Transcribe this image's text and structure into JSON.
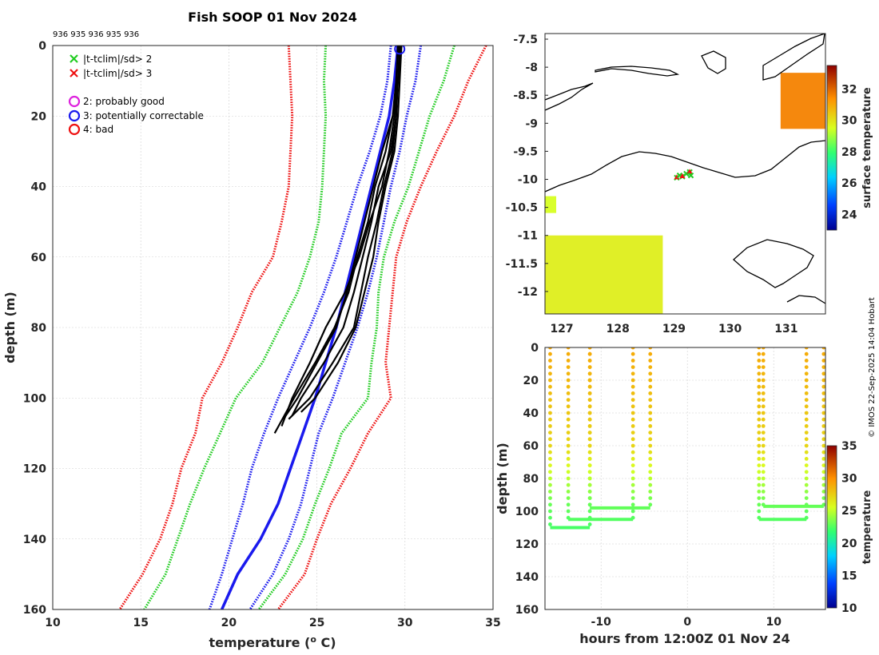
{
  "chart_data": [
    {
      "id": "profile",
      "type": "line",
      "title": "Fish SOOP 01 Nov 2024",
      "subtitle": "936 935 936 935 936",
      "xlabel": "temperature (",
      "xlabel_sup": "o",
      "xlabel_unit": " C)",
      "ylabel": "depth (m)",
      "xlim": [
        10,
        35
      ],
      "ylim": [
        0,
        160
      ],
      "y_reversed": true,
      "grid": true,
      "xticks": [
        10,
        15,
        20,
        25,
        30,
        35
      ],
      "yticks": [
        0,
        20,
        40,
        60,
        80,
        100,
        120,
        140,
        160
      ],
      "legend": [
        {
          "marker": "x",
          "color": "#22cc22",
          "label": "|t-tclim|/sd> 2"
        },
        {
          "marker": "x",
          "color": "#ee1111",
          "label": "|t-tclim|/sd> 3"
        },
        {
          "marker": "o",
          "color": "#dd22dd",
          "label": "2: probably good"
        },
        {
          "marker": "o",
          "color": "#1a1aee",
          "label": "3: potentially correctable"
        },
        {
          "marker": "o",
          "color": "#ee1111",
          "label": "4: bad"
        }
      ],
      "depths": [
        0,
        10,
        20,
        30,
        40,
        50,
        60,
        70,
        80,
        90,
        100,
        110,
        120,
        130,
        140,
        150,
        160
      ],
      "climatology_mean": [
        29.6,
        29.4,
        29.1,
        28.6,
        28.1,
        27.6,
        27.1,
        26.6,
        26.1,
        25.5,
        24.9,
        24.2,
        23.5,
        22.8,
        21.8,
        20.5,
        19.6
      ],
      "envelopes": [
        {
          "name": "-1 sd",
          "color": "#1a1aee",
          "values": [
            29.2,
            29.0,
            28.6,
            28.0,
            27.3,
            26.7,
            26.1,
            25.4,
            24.6,
            23.7,
            22.8,
            22.0,
            21.3,
            20.8,
            20.2,
            19.6,
            18.9
          ]
        },
        {
          "name": "+1 sd",
          "color": "#1a1aee",
          "values": [
            30.9,
            30.6,
            30.1,
            29.7,
            29.2,
            28.8,
            28.4,
            27.9,
            27.3,
            26.6,
            25.9,
            25.1,
            24.6,
            24.1,
            23.4,
            22.5,
            21.2
          ]
        },
        {
          "name": "-2 sd",
          "color": "#22cc22",
          "values": [
            25.5,
            25.4,
            25.5,
            25.4,
            25.3,
            25.1,
            24.6,
            23.9,
            22.9,
            21.9,
            20.4,
            19.5,
            18.6,
            17.8,
            17.1,
            16.4,
            15.2
          ]
        },
        {
          "name": "+2 sd",
          "color": "#22cc22",
          "values": [
            32.8,
            32.2,
            31.4,
            30.8,
            30.2,
            29.4,
            28.8,
            28.5,
            28.4,
            28.1,
            27.9,
            26.4,
            25.7,
            24.9,
            24.2,
            23.2,
            21.7
          ]
        },
        {
          "name": "-3 sd",
          "color": "#ee1111",
          "values": [
            23.4,
            23.5,
            23.6,
            23.5,
            23.4,
            23.0,
            22.5,
            21.3,
            20.5,
            19.6,
            18.5,
            18.1,
            17.3,
            16.8,
            16.1,
            15.1,
            13.8
          ]
        },
        {
          "name": "+3 sd",
          "color": "#ee1111",
          "values": [
            34.6,
            33.6,
            32.8,
            31.8,
            30.9,
            30.1,
            29.5,
            29.3,
            29.1,
            28.9,
            29.2,
            27.9,
            26.9,
            25.8,
            25.0,
            24.3,
            22.8
          ]
        }
      ],
      "profiles": [
        {
          "color": "#000000",
          "depths": [
            0,
            10,
            20,
            30,
            40,
            50,
            60,
            70,
            80,
            90,
            100,
            106
          ],
          "values": [
            29.7,
            29.6,
            29.5,
            29.3,
            28.8,
            28.4,
            27.9,
            27.5,
            27.1,
            25.9,
            24.6,
            23.4
          ]
        },
        {
          "color": "#000000",
          "depths": [
            0,
            10,
            20,
            30,
            40,
            50,
            60,
            70,
            80,
            90,
            100,
            105
          ],
          "values": [
            29.6,
            29.5,
            29.5,
            29.2,
            28.5,
            28.1,
            27.6,
            27.1,
            26.5,
            25.4,
            24.1,
            23.6
          ]
        },
        {
          "color": "#000000",
          "depths": [
            0,
            10,
            20,
            30,
            40,
            50,
            60,
            70,
            80,
            90,
            100,
            110
          ],
          "values": [
            29.8,
            29.6,
            29.3,
            28.9,
            28.3,
            27.9,
            27.3,
            26.8,
            26.0,
            24.9,
            23.7,
            22.6
          ]
        },
        {
          "color": "#000000",
          "depths": [
            0,
            10,
            20,
            30,
            40,
            50,
            60,
            70,
            80,
            90,
            100,
            108
          ],
          "values": [
            29.7,
            29.6,
            29.4,
            29.1,
            28.7,
            28.0,
            27.4,
            26.6,
            25.5,
            24.6,
            23.6,
            23.0
          ]
        },
        {
          "color": "#000000",
          "depths": [
            0,
            10,
            20,
            30,
            40,
            50,
            60,
            70,
            80,
            90,
            100,
            104
          ],
          "values": [
            29.8,
            29.7,
            29.6,
            29.4,
            28.9,
            28.5,
            28.2,
            27.7,
            27.2,
            26.2,
            24.9,
            24.1
          ]
        },
        {
          "color": "#000000",
          "depths": [
            0,
            10,
            20,
            30,
            40,
            50,
            60,
            70,
            80,
            90,
            100,
            106
          ],
          "values": [
            29.6,
            29.5,
            29.3,
            28.7,
            28.2,
            27.7,
            27.2,
            26.7,
            26.1,
            25.0,
            23.9,
            23.1
          ]
        }
      ],
      "flag_marker": {
        "temperature": 29.7,
        "depth": 1,
        "color": "#1a1aee",
        "shape": "circle"
      }
    },
    {
      "id": "map",
      "type": "heatmap",
      "xlim": [
        126.7,
        131.7
      ],
      "ylim": [
        -12.4,
        -7.4
      ],
      "xticks": [
        127,
        128,
        129,
        130,
        131
      ],
      "yticks": [
        -7.5,
        -8,
        -8.5,
        -9,
        -9.5,
        -10,
        -10.5,
        -11,
        -11.5,
        -12
      ],
      "colorbar_label": "surface temperature",
      "colorbar_range": [
        23,
        33.5
      ],
      "colorbar_ticks": [
        24,
        26,
        28,
        30,
        32
      ],
      "drop_locations": [
        [
          129.05,
          -9.97
        ],
        [
          129.1,
          -9.93
        ],
        [
          129.15,
          -9.95
        ],
        [
          129.22,
          -9.9
        ],
        [
          129.28,
          -9.87
        ],
        [
          129.3,
          -9.93
        ]
      ],
      "sst_patches": [
        {
          "region": "south-west",
          "lon": [
            126.7,
            128.8
          ],
          "lat": [
            -12.4,
            -11.0
          ],
          "temperature": 29.8
        },
        {
          "region": "north-east",
          "lon": [
            130.9,
            131.7
          ],
          "lat": [
            -9.1,
            -8.1
          ],
          "temperature": 31.6
        },
        {
          "region": "west",
          "lon": [
            126.7,
            126.9
          ],
          "lat": [
            -10.6,
            -10.3
          ],
          "temperature": 29.5
        }
      ]
    },
    {
      "id": "timeseries",
      "type": "scatter",
      "xlabel": "hours from 12:00Z 01 Nov 24",
      "ylabel": "depth (m)",
      "xlim": [
        -16.5,
        16
      ],
      "ylim": [
        0,
        160
      ],
      "y_reversed": true,
      "xticks": [
        -10,
        0,
        10
      ],
      "yticks": [
        0,
        20,
        40,
        60,
        80,
        100,
        120,
        140,
        160
      ],
      "colorbar_label": "temperature",
      "colorbar_range": [
        10,
        35
      ],
      "colorbar_ticks": [
        10,
        15,
        20,
        25,
        30,
        35
      ],
      "casts": [
        {
          "start_hour": -15.9,
          "end_hour": -11.3,
          "bottom_depth": 110
        },
        {
          "start_hour": -13.8,
          "end_hour": -6.3,
          "bottom_depth": 105
        },
        {
          "start_hour": -11.3,
          "end_hour": -4.3,
          "bottom_depth": 98
        },
        {
          "start_hour": 8.3,
          "end_hour": 13.8,
          "bottom_depth": 105
        },
        {
          "start_hour": 8.8,
          "end_hour": 15.8,
          "bottom_depth": 97
        }
      ]
    }
  ],
  "credit": "© IMOS 22-Sep-2025 14:04 Hobart"
}
